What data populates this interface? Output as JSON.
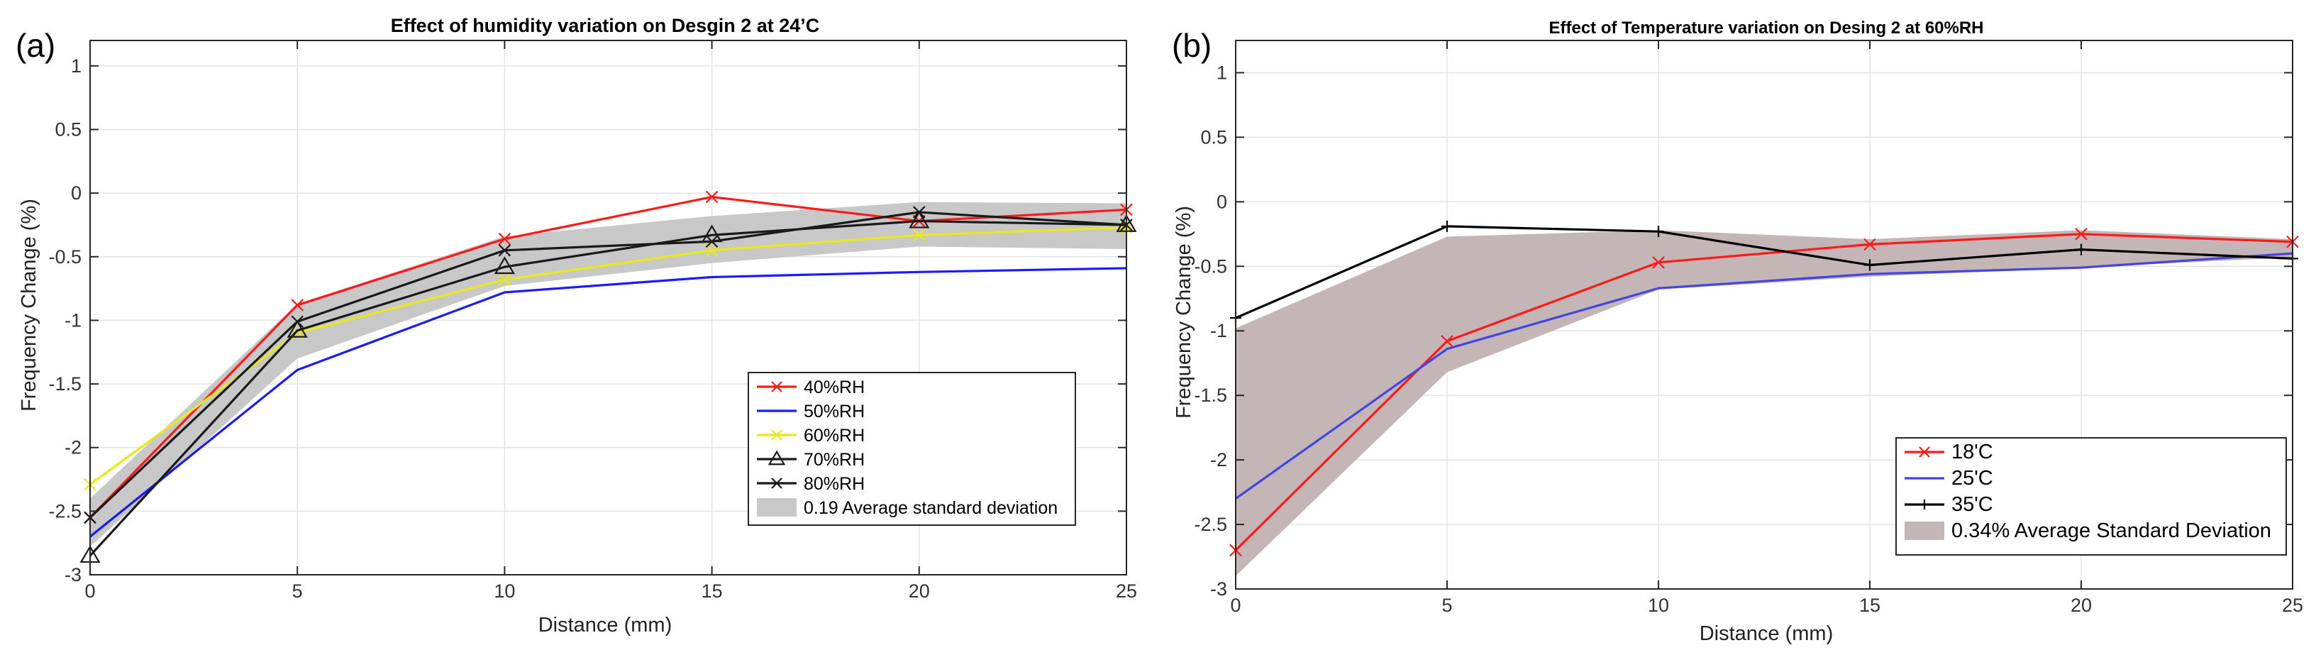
{
  "chart_data": [
    {
      "type": "line",
      "panel_label": "(a)",
      "title": "Effect of humidity variation on Desgin 2 at 24’C",
      "xlabel": "Distance (mm)",
      "ylabel": "Frequency Change (%)",
      "xlim": [
        0,
        25
      ],
      "ylim": [
        -3,
        1.2
      ],
      "xticks": [
        0,
        5,
        10,
        15,
        20,
        25
      ],
      "xtick_labels": [
        "0",
        "5",
        "10",
        "15",
        "20",
        "25"
      ],
      "yticks": [
        -3,
        -2.5,
        -2,
        -1.5,
        -1,
        -0.5,
        0,
        0.5,
        1
      ],
      "ytick_labels": [
        "-3",
        "-2.5",
        "-2",
        "-1.5",
        "-1",
        "-0.5",
        "0",
        "0.5",
        "1"
      ],
      "grid": true,
      "legend_position": "bottom-right",
      "x": [
        0,
        5,
        10,
        15,
        20,
        25
      ],
      "band": {
        "name": "0.19 Average standard deviation",
        "color": "#c8c8c8",
        "upper": [
          -2.4,
          -0.87,
          -0.34,
          -0.18,
          -0.07,
          -0.08
        ],
        "lower": [
          -2.78,
          -1.3,
          -0.73,
          -0.55,
          -0.42,
          -0.44
        ]
      },
      "series": [
        {
          "name": "40%RH",
          "color": "#ff1a1a",
          "marker": "x",
          "values": [
            -2.55,
            -0.88,
            -0.36,
            -0.03,
            -0.22,
            -0.13
          ]
        },
        {
          "name": "50%RH",
          "color": "#1a1aff",
          "marker": "none",
          "values": [
            -2.7,
            -1.39,
            -0.78,
            -0.66,
            -0.62,
            -0.59
          ]
        },
        {
          "name": "60%RH",
          "color": "#e8e81a",
          "marker": "x",
          "values": [
            -2.29,
            -1.1,
            -0.68,
            -0.45,
            -0.33,
            -0.27
          ]
        },
        {
          "name": "70%RH",
          "color": "#1a1a1a",
          "marker": "triangle",
          "values": [
            -2.85,
            -1.08,
            -0.58,
            -0.33,
            -0.22,
            -0.25
          ]
        },
        {
          "name": "80%RH",
          "color": "#1a1a1a",
          "marker": "x",
          "values": [
            -2.55,
            -1.01,
            -0.45,
            -0.38,
            -0.15,
            -0.25
          ]
        }
      ]
    },
    {
      "type": "line",
      "panel_label": "(b)",
      "title": "Effect of Temperature variation on Desing 2 at 60%RH",
      "xlabel": "Distance (mm)",
      "ylabel": "Frequency Change (%)",
      "xlim": [
        0,
        25
      ],
      "ylim": [
        -3,
        1.25
      ],
      "xticks": [
        0,
        5,
        10,
        15,
        20,
        25
      ],
      "xtick_labels": [
        "0",
        "5",
        "10",
        "15",
        "20",
        "25"
      ],
      "yticks": [
        -3,
        -2.5,
        -2,
        -1.5,
        -1,
        -0.5,
        0,
        0.5,
        1
      ],
      "ytick_labels": [
        "-3",
        "-2.5",
        "-2",
        "-1.5",
        "-1",
        "-0.5",
        "0",
        "0.5",
        "1"
      ],
      "grid": true,
      "legend_position": "bottom-right",
      "x": [
        0,
        5,
        10,
        15,
        20,
        25
      ],
      "band": {
        "name": "0.34% Average Standard Deviation",
        "color": "#c4b6b6",
        "upper": [
          -0.98,
          -0.27,
          -0.22,
          -0.29,
          -0.22,
          -0.29
        ],
        "lower": [
          -2.9,
          -1.32,
          -0.68,
          -0.58,
          -0.51,
          -0.43
        ]
      },
      "series": [
        {
          "name": "18'C",
          "color": "#ff1a1a",
          "marker": "x",
          "values": [
            -2.7,
            -1.08,
            -0.47,
            -0.33,
            -0.25,
            -0.31
          ]
        },
        {
          "name": "25'C",
          "color": "#4545e6",
          "marker": "none",
          "values": [
            -2.3,
            -1.14,
            -0.67,
            -0.56,
            -0.51,
            -0.4
          ]
        },
        {
          "name": "35'C",
          "color": "#000000",
          "marker": "plus",
          "values": [
            -0.9,
            -0.19,
            -0.23,
            -0.49,
            -0.37,
            -0.44
          ]
        }
      ]
    }
  ]
}
